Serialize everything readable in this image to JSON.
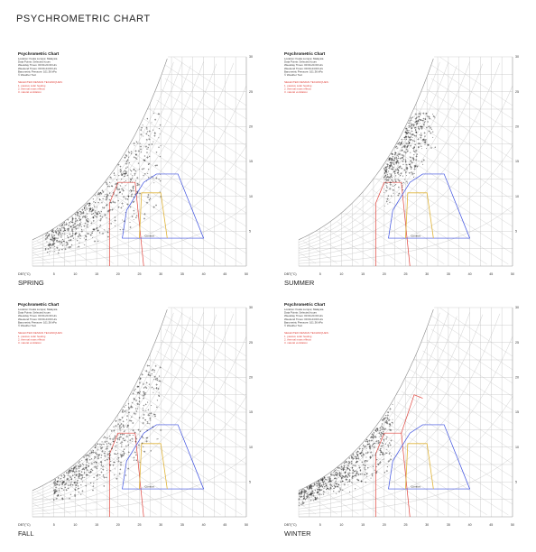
{
  "page": {
    "title": "PSYCHROMETRIC CHART"
  },
  "panel_text": {
    "chart_title": "Psychrometric Chart",
    "info_lines": [
      "Location: Kuala Lumpur, Malaysia",
      "Data Points: Selected hours",
      "Weekday Times: 00:00-24:00 Hrs",
      "Weekend Times: 00:00-24:00 Hrs",
      "Barometric Pressure: 101.36 kPa",
      "© Weather Tool"
    ],
    "techniques_heading": "SELECTED DESIGN TECHNIQUES:",
    "techniques": [
      "1. passive solar heating",
      "2. thermal mass effects",
      "3. natural ventilation"
    ],
    "axis_label": "DBT(°C)",
    "comfort_label": "Comfort"
  },
  "colors": {
    "comfort_zone": "#e0b43a",
    "technique_1": "#e0413a",
    "technique_2": "#3a4ee0",
    "technique_3": "#e0413a",
    "heading": "#e0413a",
    "points": "#111111",
    "grid": "#bbbbbb"
  },
  "chart_data": [
    {
      "type": "scatter",
      "title": "Psychrometric Chart",
      "season": "SPRING",
      "xlabel": "DBT(°C)",
      "xlim": [
        0,
        50
      ],
      "ylim": [
        0,
        30
      ],
      "x_ticks": [
        5,
        10,
        15,
        20,
        25,
        30,
        35,
        40,
        45,
        50
      ],
      "y_ticks": [
        5,
        10,
        15,
        20,
        25,
        30
      ],
      "cloud": {
        "n": 620,
        "x_range": [
          3,
          30
        ],
        "rh_range": [
          0.3,
          0.98
        ]
      },
      "zones": {
        "comfort": true,
        "technique_1": "full",
        "technique_2": true
      }
    },
    {
      "type": "scatter",
      "title": "Psychrometric Chart",
      "season": "SUMMER",
      "xlabel": "DBT(°C)",
      "xlim": [
        0,
        50
      ],
      "ylim": [
        0,
        30
      ],
      "x_ticks": [
        5,
        10,
        15,
        20,
        25,
        30,
        35,
        40,
        45,
        50
      ],
      "y_ticks": [
        5,
        10,
        15,
        20,
        25,
        30
      ],
      "cloud": {
        "n": 520,
        "x_range": [
          20,
          32
        ],
        "rh_range": [
          0.55,
          0.98
        ]
      },
      "zones": {
        "comfort": true,
        "technique_1": "full",
        "technique_2": true
      }
    },
    {
      "type": "scatter",
      "title": "Psychrometric Chart",
      "season": "FALL",
      "xlabel": "DBT(°C)",
      "xlim": [
        0,
        50
      ],
      "ylim": [
        0,
        30
      ],
      "x_ticks": [
        5,
        10,
        15,
        20,
        25,
        30,
        35,
        40,
        45,
        50
      ],
      "y_ticks": [
        5,
        10,
        15,
        20,
        25,
        30
      ],
      "cloud": {
        "n": 560,
        "x_range": [
          5,
          30
        ],
        "rh_range": [
          0.35,
          0.98
        ]
      },
      "zones": {
        "comfort": true,
        "technique_1": "full",
        "technique_2": true
      }
    },
    {
      "type": "scatter",
      "title": "Psychrometric Chart",
      "season": "WINTER",
      "xlabel": "DBT(°C)",
      "xlim": [
        0,
        50
      ],
      "ylim": [
        0,
        30
      ],
      "x_ticks": [
        5,
        10,
        15,
        20,
        25,
        30,
        35,
        40,
        45,
        50
      ],
      "y_ticks": [
        5,
        10,
        15,
        20,
        25,
        30
      ],
      "cloud": {
        "n": 560,
        "x_range": [
          0,
          22
        ],
        "rh_range": [
          0.4,
          0.98
        ]
      },
      "zones": {
        "comfort": true,
        "technique_1": "partial",
        "technique_2": true
      }
    }
  ]
}
